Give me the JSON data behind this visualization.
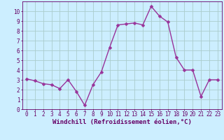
{
  "x": [
    0,
    1,
    2,
    3,
    4,
    5,
    6,
    7,
    8,
    9,
    10,
    11,
    12,
    13,
    14,
    15,
    16,
    17,
    18,
    19,
    20,
    21,
    22,
    23
  ],
  "y": [
    3.1,
    2.9,
    2.6,
    2.5,
    2.1,
    3.0,
    1.8,
    0.4,
    2.5,
    3.8,
    6.3,
    8.6,
    8.7,
    8.8,
    8.6,
    10.5,
    9.5,
    8.9,
    5.3,
    4.0,
    4.0,
    1.3,
    3.0,
    3.0
  ],
  "line_color": "#993399",
  "marker_color": "#993399",
  "bg_color": "#cceeff",
  "grid_color": "#aacccc",
  "xlabel": "Windchill (Refroidissement éolien,°C)",
  "xlabel_color": "#660066",
  "tick_color": "#660066",
  "xlim": [
    -0.5,
    23.5
  ],
  "ylim": [
    0,
    11.0
  ],
  "xtick_labels": [
    "0",
    "1",
    "2",
    "3",
    "4",
    "5",
    "6",
    "7",
    "8",
    "9",
    "10",
    "11",
    "12",
    "13",
    "14",
    "15",
    "16",
    "17",
    "18",
    "19",
    "20",
    "21",
    "22",
    "23"
  ],
  "ytick_values": [
    0,
    1,
    2,
    3,
    4,
    5,
    6,
    7,
    8,
    9,
    10
  ],
  "xlabel_fontsize": 6.5,
  "tick_fontsize": 5.5,
  "line_width": 1.0,
  "marker_size": 2.5
}
